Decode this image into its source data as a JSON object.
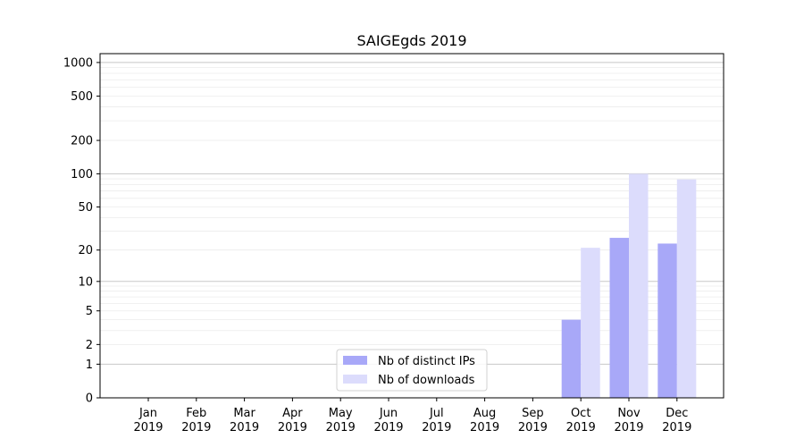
{
  "chart_data": {
    "type": "bar",
    "title": "SAIGEgds 2019",
    "xlabel": "",
    "ylabel": "",
    "yscale": "log(1+y)",
    "ylim": [
      0,
      1200
    ],
    "yticks": [
      0,
      1,
      2,
      5,
      10,
      20,
      50,
      100,
      200,
      500,
      1000
    ],
    "ytick_labels": [
      "0",
      "1",
      "2",
      "5",
      "10",
      "20",
      "50",
      "100",
      "200",
      "500",
      "1000"
    ],
    "categories": [
      {
        "month": "Jan",
        "year": "2019"
      },
      {
        "month": "Feb",
        "year": "2019"
      },
      {
        "month": "Mar",
        "year": "2019"
      },
      {
        "month": "Apr",
        "year": "2019"
      },
      {
        "month": "May",
        "year": "2019"
      },
      {
        "month": "Jun",
        "year": "2019"
      },
      {
        "month": "Jul",
        "year": "2019"
      },
      {
        "month": "Aug",
        "year": "2019"
      },
      {
        "month": "Sep",
        "year": "2019"
      },
      {
        "month": "Oct",
        "year": "2019"
      },
      {
        "month": "Nov",
        "year": "2019"
      },
      {
        "month": "Dec",
        "year": "2019"
      }
    ],
    "series": [
      {
        "name": "Nb of distinct IPs",
        "color": "#a8a8f8",
        "values": [
          0,
          0,
          0,
          0,
          0,
          0,
          0,
          0,
          0,
          4,
          26,
          23
        ]
      },
      {
        "name": "Nb of downloads",
        "color": "#dcdcfc",
        "values": [
          0,
          0,
          0,
          0,
          0,
          0,
          0,
          0,
          0,
          21,
          100,
          89
        ]
      }
    ],
    "grid": "horizontal",
    "legend_position": "lower-center"
  }
}
